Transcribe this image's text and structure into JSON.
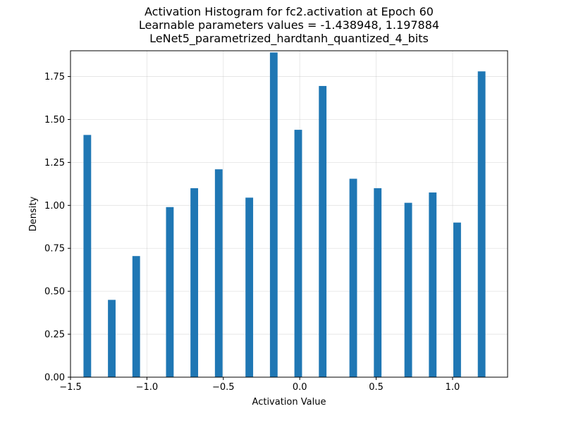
{
  "chart_data": {
    "type": "bar",
    "title": [
      "Activation Histogram for fc2.activation at Epoch 60",
      "Learnable parameters values = -1.438948, 1.197884",
      "LeNet5_parametrized_hardtanh_quantized_4_bits"
    ],
    "xlabel": "Activation Value",
    "ylabel": "Density",
    "xlim": [
      -1.5,
      1.36
    ],
    "ylim": [
      0,
      1.9
    ],
    "grid": true,
    "xticks": [
      -1.5,
      -1.0,
      -0.5,
      0.0,
      0.5,
      1.0
    ],
    "xtick_labels": [
      "−1.5",
      "−1.0",
      "−0.5",
      "0.0",
      "0.5",
      "1.0"
    ],
    "yticks": [
      0.0,
      0.25,
      0.5,
      0.75,
      1.0,
      1.25,
      1.5,
      1.75
    ],
    "ytick_labels": [
      "0.00",
      "0.25",
      "0.50",
      "0.75",
      "1.00",
      "1.25",
      "1.50",
      "1.75"
    ],
    "bar_width": 0.05,
    "bar_color": "#1f77b4",
    "bins": [
      {
        "x": -1.39,
        "density": 1.41
      },
      {
        "x": -1.23,
        "density": 0.45
      },
      {
        "x": -1.07,
        "density": 0.705
      },
      {
        "x": -0.85,
        "density": 0.99
      },
      {
        "x": -0.69,
        "density": 1.1
      },
      {
        "x": -0.53,
        "density": 1.21
      },
      {
        "x": -0.33,
        "density": 1.045
      },
      {
        "x": -0.17,
        "density": 1.89
      },
      {
        "x": -0.01,
        "density": 1.44
      },
      {
        "x": 0.15,
        "density": 1.695
      },
      {
        "x": 0.35,
        "density": 1.155
      },
      {
        "x": 0.51,
        "density": 1.1
      },
      {
        "x": 0.71,
        "density": 1.015
      },
      {
        "x": 0.87,
        "density": 1.075
      },
      {
        "x": 1.03,
        "density": 0.9
      },
      {
        "x": 1.19,
        "density": 1.78
      }
    ]
  }
}
